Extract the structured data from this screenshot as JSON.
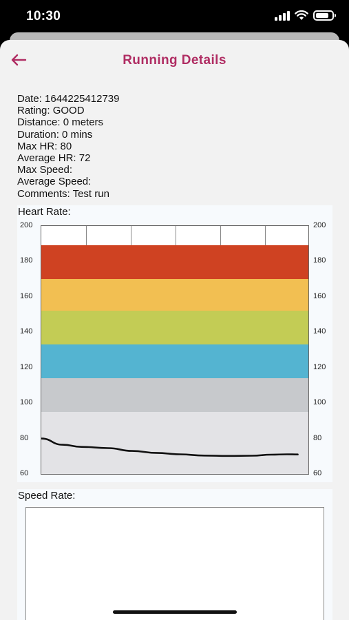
{
  "status_bar": {
    "time": "10:30"
  },
  "header": {
    "title": "Running Details",
    "back_icon": "arrow-left-icon"
  },
  "details": {
    "lines": [
      "Date: 1644225412739",
      "Rating: GOOD",
      "Distance: 0 meters",
      "Duration: 0 mins",
      "Max HR: 80",
      "Average HR: 72",
      "Max Speed:",
      "Average Speed:",
      "Comments: Test run"
    ]
  },
  "heart_chart": {
    "label": "Heart Rate:",
    "chart_data": {
      "type": "line",
      "ylim": [
        60,
        200
      ],
      "yticks": [
        "200",
        "180",
        "160",
        "140",
        "120",
        "100",
        "80",
        "60"
      ],
      "zones": [
        {
          "from": 170,
          "to": 189,
          "color": "#cf4222"
        },
        {
          "from": 152,
          "to": 170,
          "color": "#f2bf52"
        },
        {
          "from": 133,
          "to": 152,
          "color": "#c3cc55"
        },
        {
          "from": 114,
          "to": 133,
          "color": "#54b4d1"
        },
        {
          "from": 95,
          "to": 114,
          "color": "#c7c9cc"
        },
        {
          "from": 60,
          "to": 95,
          "color": "#e3e3e6"
        }
      ],
      "series": [
        {
          "values": [
            [
              0,
              80
            ],
            [
              0.08,
              76.5
            ],
            [
              0.15,
              75.3
            ],
            [
              0.25,
              74.6
            ],
            [
              0.34,
              73
            ],
            [
              0.43,
              71.9
            ],
            [
              0.52,
              71.1
            ],
            [
              0.61,
              70.4
            ],
            [
              0.7,
              70.2
            ],
            [
              0.79,
              70.3
            ],
            [
              0.86,
              70.9
            ],
            [
              0.92,
              71.1
            ],
            [
              0.96,
              71
            ]
          ]
        }
      ],
      "line_color": "#111111"
    }
  },
  "speed_chart": {
    "label": "Speed Rate:"
  }
}
